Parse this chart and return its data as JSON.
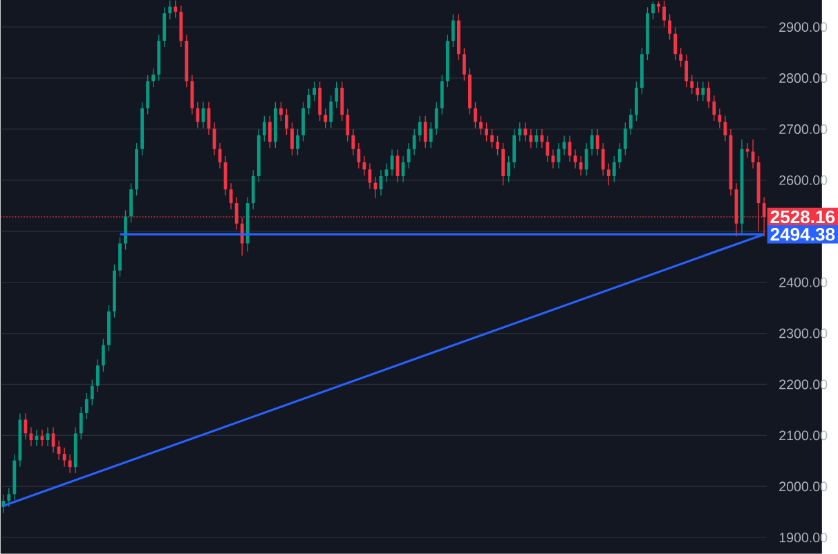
{
  "chart_data": {
    "type": "candlestick",
    "categories": [
      null,
      null,
      null,
      null,
      null,
      null,
      null,
      null,
      null,
      null,
      null,
      null,
      null,
      null,
      null,
      null,
      null,
      null,
      null,
      null,
      null,
      null,
      null,
      null,
      null,
      null,
      null,
      null,
      null,
      null,
      null,
      null,
      null,
      null,
      null,
      null,
      null,
      null,
      null,
      null,
      null,
      null,
      null,
      null,
      null,
      null,
      null,
      null,
      null,
      null,
      null,
      null,
      null,
      null,
      null,
      null,
      null,
      null,
      null,
      null,
      null,
      null,
      null,
      null,
      null,
      null,
      null,
      null,
      null,
      null,
      null,
      null,
      null,
      null,
      null,
      null,
      null,
      null,
      null,
      null,
      null,
      null,
      null,
      null,
      null,
      null,
      null,
      null,
      null,
      null,
      null,
      null,
      null,
      null,
      null,
      null,
      null,
      null,
      null,
      null,
      null,
      null,
      null,
      null,
      null,
      null,
      null,
      null,
      null,
      null,
      null,
      null,
      null,
      null,
      null,
      null,
      null,
      null,
      null,
      null,
      null,
      null,
      null,
      null,
      null,
      null,
      null,
      null,
      null,
      null,
      null,
      null,
      null,
      null,
      null,
      null,
      null,
      null
    ],
    "ohlc": [
      [
        1960,
        1984,
        1948,
        1972
      ],
      [
        1972,
        1997,
        1960,
        1985
      ],
      [
        1985,
        2063,
        1973,
        2051
      ],
      [
        2051,
        2143,
        2039,
        2131
      ],
      [
        2131,
        2143,
        2092,
        2104
      ],
      [
        2104,
        2116,
        2079,
        2091
      ],
      [
        2091,
        2111,
        2079,
        2099
      ],
      [
        2099,
        2111,
        2079,
        2091
      ],
      [
        2091,
        2116,
        2079,
        2104
      ],
      [
        2104,
        2116,
        2066,
        2078
      ],
      [
        2078,
        2090,
        2052,
        2064
      ],
      [
        2064,
        2076,
        2039,
        2051
      ],
      [
        2051,
        2063,
        2026,
        2038
      ],
      [
        2038,
        2116,
        2026,
        2104
      ],
      [
        2104,
        2156,
        2092,
        2144
      ],
      [
        2144,
        2183,
        2132,
        2171
      ],
      [
        2171,
        2209,
        2159,
        2197
      ],
      [
        2197,
        2249,
        2185,
        2237
      ],
      [
        2237,
        2289,
        2225,
        2277
      ],
      [
        2277,
        2355,
        2265,
        2343
      ],
      [
        2343,
        2435,
        2331,
        2423
      ],
      [
        2423,
        2488,
        2411,
        2476
      ],
      [
        2476,
        2541,
        2464,
        2529
      ],
      [
        2529,
        2594,
        2517,
        2582
      ],
      [
        2582,
        2673,
        2570,
        2661
      ],
      [
        2661,
        2753,
        2649,
        2741
      ],
      [
        2741,
        2806,
        2729,
        2794
      ],
      [
        2794,
        2819,
        2782,
        2807
      ],
      [
        2807,
        2885,
        2795,
        2873
      ],
      [
        2873,
        2939,
        2861,
        2927
      ],
      [
        2927,
        2952,
        2915,
        2940
      ],
      [
        2940,
        2952,
        2918,
        2930
      ],
      [
        2930,
        2942,
        2861,
        2873
      ],
      [
        2873,
        2885,
        2782,
        2794
      ],
      [
        2794,
        2806,
        2729,
        2741
      ],
      [
        2741,
        2753,
        2702,
        2714
      ],
      [
        2714,
        2753,
        2702,
        2741
      ],
      [
        2741,
        2753,
        2689,
        2701
      ],
      [
        2701,
        2713,
        2649,
        2661
      ],
      [
        2661,
        2673,
        2623,
        2635
      ],
      [
        2635,
        2647,
        2570,
        2582
      ],
      [
        2582,
        2594,
        2543,
        2555
      ],
      [
        2555,
        2567,
        2503,
        2515
      ],
      [
        2515,
        2527,
        2452,
        2476
      ],
      [
        2476,
        2567,
        2460,
        2555
      ],
      [
        2555,
        2620,
        2543,
        2608
      ],
      [
        2608,
        2700,
        2596,
        2688
      ],
      [
        2688,
        2726,
        2676,
        2714
      ],
      [
        2714,
        2726,
        2663,
        2675
      ],
      [
        2675,
        2753,
        2663,
        2741
      ],
      [
        2741,
        2753,
        2716,
        2728
      ],
      [
        2728,
        2740,
        2689,
        2701
      ],
      [
        2701,
        2713,
        2649,
        2661
      ],
      [
        2661,
        2700,
        2649,
        2688
      ],
      [
        2688,
        2753,
        2676,
        2741
      ],
      [
        2741,
        2779,
        2729,
        2767
      ],
      [
        2767,
        2793,
        2755,
        2781
      ],
      [
        2781,
        2793,
        2716,
        2728
      ],
      [
        2728,
        2740,
        2702,
        2714
      ],
      [
        2714,
        2766,
        2702,
        2754
      ],
      [
        2754,
        2793,
        2742,
        2781
      ],
      [
        2781,
        2793,
        2716,
        2728
      ],
      [
        2728,
        2740,
        2676,
        2688
      ],
      [
        2688,
        2700,
        2649,
        2661
      ],
      [
        2661,
        2673,
        2623,
        2635
      ],
      [
        2635,
        2647,
        2609,
        2621
      ],
      [
        2621,
        2633,
        2583,
        2595
      ],
      [
        2595,
        2607,
        2565,
        2582
      ],
      [
        2582,
        2620,
        2570,
        2608
      ],
      [
        2608,
        2633,
        2596,
        2621
      ],
      [
        2621,
        2660,
        2609,
        2648
      ],
      [
        2648,
        2660,
        2596,
        2608
      ],
      [
        2608,
        2647,
        2596,
        2635
      ],
      [
        2635,
        2673,
        2623,
        2661
      ],
      [
        2661,
        2700,
        2649,
        2688
      ],
      [
        2688,
        2726,
        2676,
        2714
      ],
      [
        2714,
        2726,
        2663,
        2675
      ],
      [
        2675,
        2713,
        2663,
        2701
      ],
      [
        2701,
        2753,
        2689,
        2741
      ],
      [
        2741,
        2806,
        2729,
        2794
      ],
      [
        2794,
        2885,
        2782,
        2873
      ],
      [
        2873,
        2925,
        2861,
        2913
      ],
      [
        2913,
        2925,
        2835,
        2847
      ],
      [
        2847,
        2859,
        2795,
        2807
      ],
      [
        2807,
        2819,
        2729,
        2741
      ],
      [
        2741,
        2753,
        2702,
        2714
      ],
      [
        2714,
        2726,
        2689,
        2701
      ],
      [
        2701,
        2713,
        2676,
        2688
      ],
      [
        2688,
        2700,
        2663,
        2675
      ],
      [
        2675,
        2687,
        2649,
        2661
      ],
      [
        2661,
        2673,
        2590,
        2608
      ],
      [
        2608,
        2647,
        2596,
        2635
      ],
      [
        2635,
        2700,
        2623,
        2688
      ],
      [
        2688,
        2713,
        2676,
        2701
      ],
      [
        2701,
        2713,
        2676,
        2688
      ],
      [
        2688,
        2700,
        2663,
        2675
      ],
      [
        2675,
        2700,
        2663,
        2688
      ],
      [
        2688,
        2700,
        2663,
        2675
      ],
      [
        2675,
        2687,
        2636,
        2648
      ],
      [
        2648,
        2660,
        2623,
        2635
      ],
      [
        2635,
        2673,
        2623,
        2661
      ],
      [
        2661,
        2687,
        2649,
        2675
      ],
      [
        2675,
        2687,
        2636,
        2648
      ],
      [
        2648,
        2660,
        2623,
        2635
      ],
      [
        2635,
        2647,
        2609,
        2621
      ],
      [
        2621,
        2673,
        2609,
        2661
      ],
      [
        2661,
        2700,
        2649,
        2688
      ],
      [
        2688,
        2700,
        2649,
        2661
      ],
      [
        2661,
        2673,
        2609,
        2621
      ],
      [
        2621,
        2633,
        2590,
        2608
      ],
      [
        2608,
        2647,
        2596,
        2635
      ],
      [
        2635,
        2673,
        2623,
        2661
      ],
      [
        2661,
        2713,
        2649,
        2701
      ],
      [
        2701,
        2740,
        2689,
        2728
      ],
      [
        2728,
        2793,
        2716,
        2781
      ],
      [
        2781,
        2859,
        2769,
        2847
      ],
      [
        2847,
        2939,
        2835,
        2927
      ],
      [
        2927,
        2950,
        2915,
        2945
      ],
      [
        2945,
        2950,
        2928,
        2940
      ],
      [
        2940,
        2952,
        2901,
        2913
      ],
      [
        2913,
        2925,
        2875,
        2887
      ],
      [
        2887,
        2899,
        2835,
        2847
      ],
      [
        2847,
        2859,
        2822,
        2834
      ],
      [
        2834,
        2846,
        2782,
        2794
      ],
      [
        2794,
        2806,
        2769,
        2781
      ],
      [
        2781,
        2793,
        2755,
        2767
      ],
      [
        2767,
        2793,
        2755,
        2781
      ],
      [
        2781,
        2793,
        2742,
        2754
      ],
      [
        2754,
        2766,
        2716,
        2728
      ],
      [
        2728,
        2740,
        2702,
        2714
      ],
      [
        2714,
        2726,
        2676,
        2688
      ],
      [
        2688,
        2700,
        2570,
        2582
      ],
      [
        2582,
        2594,
        2490,
        2515
      ],
      [
        2515,
        2680,
        2495,
        2661
      ],
      [
        2661,
        2673,
        2644,
        2656
      ],
      [
        2656,
        2680,
        2623,
        2635
      ],
      [
        2635,
        2647,
        2500,
        2555
      ],
      [
        2555,
        2567,
        2490,
        2528.16
      ]
    ],
    "colors": [
      "#089981",
      "#089981",
      "#089981",
      "#089981",
      "#f23645",
      "#f23645",
      "#089981",
      "#f23645",
      "#089981",
      "#f23645",
      "#f23645",
      "#f23645",
      "#f23645",
      "#089981",
      "#089981",
      "#089981",
      "#089981",
      "#089981",
      "#089981",
      "#089981",
      "#089981",
      "#089981",
      "#089981",
      "#089981",
      "#089981",
      "#089981",
      "#089981",
      "#089981",
      "#089981",
      "#089981",
      "#089981",
      "#f23645",
      "#f23645",
      "#f23645",
      "#f23645",
      "#f23645",
      "#089981",
      "#f23645",
      "#f23645",
      "#f23645",
      "#f23645",
      "#f23645",
      "#f23645",
      "#f23645",
      "#089981",
      "#089981",
      "#089981",
      "#089981",
      "#f23645",
      "#089981",
      "#f23645",
      "#f23645",
      "#f23645",
      "#089981",
      "#089981",
      "#089981",
      "#089981",
      "#f23645",
      "#f23645",
      "#089981",
      "#089981",
      "#f23645",
      "#f23645",
      "#f23645",
      "#f23645",
      "#f23645",
      "#f23645",
      "#f23645",
      "#089981",
      "#089981",
      "#089981",
      "#f23645",
      "#089981",
      "#089981",
      "#089981",
      "#089981",
      "#f23645",
      "#089981",
      "#089981",
      "#089981",
      "#089981",
      "#089981",
      "#f23645",
      "#f23645",
      "#f23645",
      "#f23645",
      "#f23645",
      "#f23645",
      "#f23645",
      "#f23645",
      "#f23645",
      "#089981",
      "#089981",
      "#089981",
      "#f23645",
      "#f23645",
      "#089981",
      "#f23645",
      "#f23645",
      "#f23645",
      "#089981",
      "#089981",
      "#f23645",
      "#f23645",
      "#f23645",
      "#089981",
      "#089981",
      "#f23645",
      "#f23645",
      "#f23645",
      "#089981",
      "#089981",
      "#089981",
      "#089981",
      "#089981",
      "#089981",
      "#089981",
      "#089981",
      "#f23645",
      "#f23645",
      "#f23645",
      "#f23645",
      "#f23645",
      "#f23645",
      "#f23645",
      "#f23645",
      "#089981",
      "#f23645",
      "#f23645",
      "#f23645",
      "#f23645",
      "#f23645",
      "#f23645",
      "#089981",
      "#f23645",
      "#f23645",
      "#f23645",
      "#f23645"
    ],
    "series": [
      {
        "type": "line",
        "color": "#2962ff",
        "values": [
          1962,
          null,
          null,
          null,
          null,
          null,
          null,
          null,
          null,
          null,
          null,
          null,
          null,
          null,
          null,
          null,
          null,
          null,
          null,
          null,
          null,
          null,
          null,
          null,
          null,
          null,
          null,
          null,
          null,
          null,
          null,
          null,
          null,
          null,
          null,
          null,
          null,
          null,
          null,
          null,
          null,
          null,
          null,
          null,
          null,
          null,
          null,
          null,
          null,
          null,
          null,
          null,
          null,
          null,
          null,
          null,
          null,
          null,
          null,
          null,
          null,
          null,
          null,
          null,
          null,
          null,
          null,
          null,
          null,
          null,
          null,
          null,
          null,
          null,
          null,
          null,
          null,
          null,
          null,
          null,
          null,
          null,
          null,
          null,
          null,
          null,
          null,
          null,
          null,
          null,
          null,
          null,
          null,
          null,
          null,
          null,
          null,
          null,
          null,
          null,
          null,
          null,
          null,
          null,
          null,
          null,
          null,
          null,
          null,
          null,
          null,
          null,
          null,
          null,
          null,
          null,
          null,
          null,
          null,
          null,
          null,
          null,
          null,
          null,
          null,
          null,
          null,
          null,
          null,
          null,
          null,
          null,
          null,
          null,
          null,
          null,
          null,
          2494
        ]
      },
      {
        "type": "line",
        "color": "#2962ff",
        "values": [
          null,
          null,
          null,
          null,
          null,
          null,
          null,
          null,
          null,
          null,
          null,
          null,
          null,
          null,
          null,
          null,
          null,
          null,
          null,
          null,
          null,
          2494,
          null,
          null,
          null,
          null,
          null,
          null,
          null,
          null,
          null,
          null,
          null,
          null,
          null,
          null,
          null,
          null,
          null,
          null,
          null,
          null,
          null,
          null,
          null,
          null,
          null,
          null,
          null,
          null,
          null,
          null,
          null,
          null,
          null,
          null,
          null,
          null,
          null,
          null,
          null,
          null,
          null,
          null,
          null,
          null,
          null,
          null,
          null,
          null,
          null,
          null,
          null,
          null,
          null,
          null,
          null,
          null,
          null,
          null,
          null,
          null,
          null,
          null,
          null,
          null,
          null,
          null,
          null,
          null,
          null,
          null,
          null,
          null,
          null,
          null,
          null,
          null,
          null,
          null,
          null,
          null,
          null,
          null,
          null,
          null,
          null,
          null,
          null,
          null,
          null,
          null,
          null,
          null,
          null,
          null,
          null,
          null,
          null,
          null,
          null,
          null,
          null,
          null,
          null,
          null,
          null,
          null,
          null,
          null,
          null,
          null,
          null,
          null,
          null,
          null,
          null,
          2494
        ]
      }
    ],
    "ref_lines": [
      {
        "axis": "y",
        "value": 2528.16,
        "label": "2528.16",
        "color": "#f23645",
        "line_style": "dotted"
      }
    ],
    "annotations": [
      "2494.38"
    ],
    "ylim": [
      1868,
      2953
    ],
    "yticks": [
      {
        "value": 1900,
        "label": "1900.00"
      },
      {
        "value": 2000,
        "label": "2000.00"
      },
      {
        "value": 2100,
        "label": "2100.00"
      },
      {
        "value": 2200,
        "label": "2200.00"
      },
      {
        "value": 2300,
        "label": "2300.00"
      },
      {
        "value": 2400,
        "label": "2400.00"
      },
      {
        "value": 2500,
        "label": null
      },
      {
        "value": 2600,
        "label": "2600.00"
      },
      {
        "value": 2700,
        "label": "2700.00"
      },
      {
        "value": 2800,
        "label": "2800.00"
      },
      {
        "value": 2900,
        "label": "2900.00"
      }
    ],
    "grid": "y",
    "tick_labels": "y"
  }
}
